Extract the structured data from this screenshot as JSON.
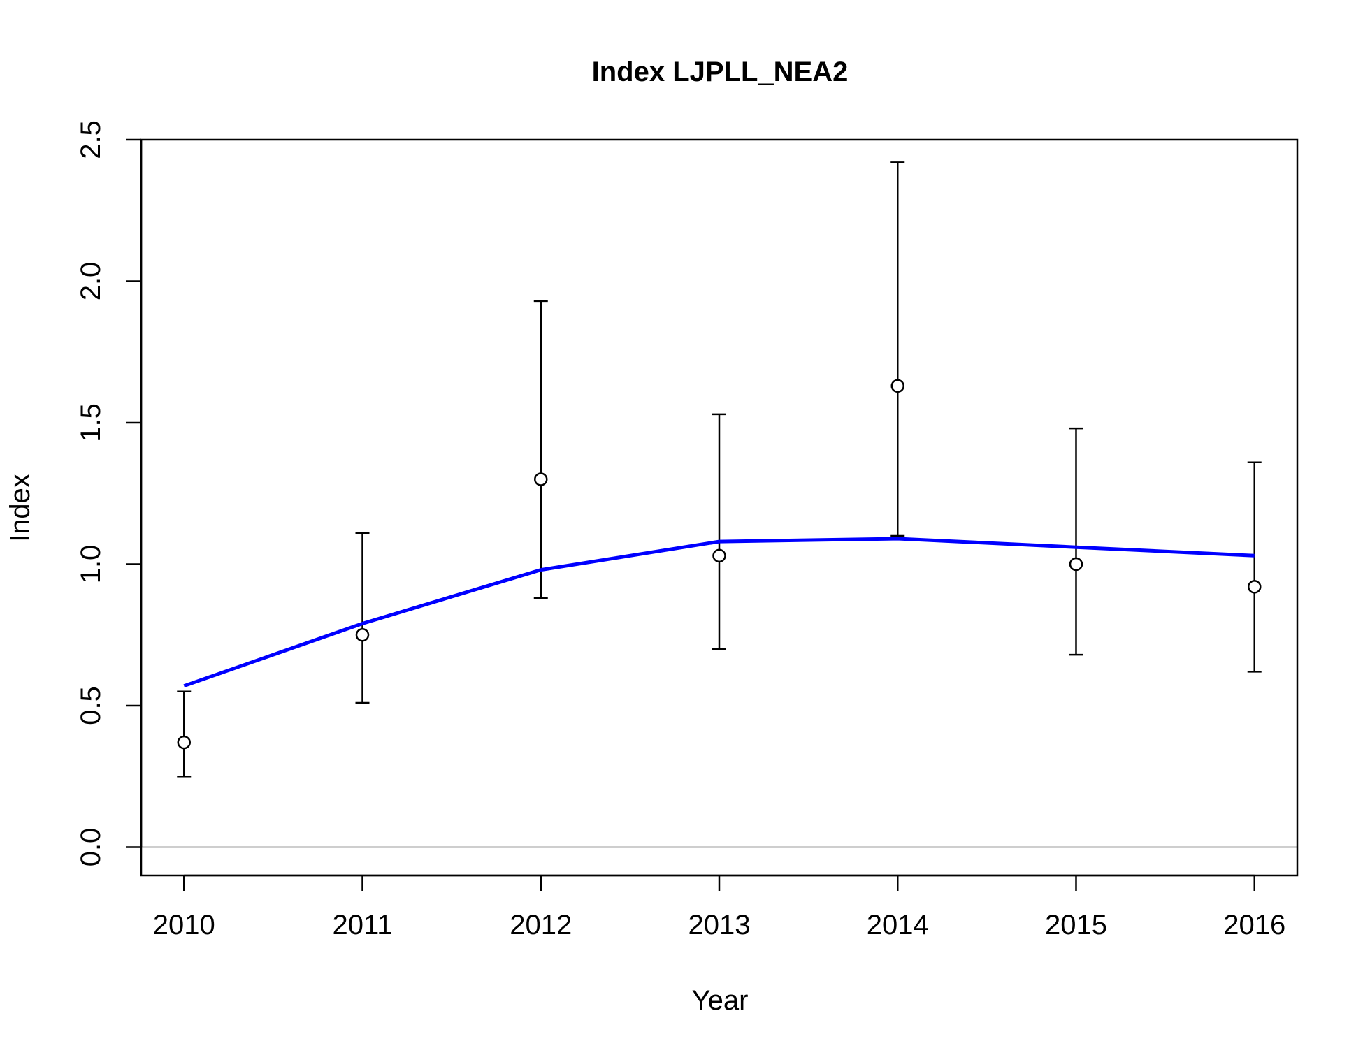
{
  "chart_data": {
    "type": "scatter",
    "title": "Index LJPLL_NEA2",
    "xlabel": "Year",
    "ylabel": "Index",
    "xlim": [
      2009.76,
      2016.24
    ],
    "ylim": [
      -0.1,
      2.5
    ],
    "x_ticks": [
      "2010",
      "2011",
      "2012",
      "2013",
      "2014",
      "2015",
      "2016"
    ],
    "y_ticks": [
      "0.0",
      "0.5",
      "1.0",
      "1.5",
      "2.0",
      "2.5"
    ],
    "series": [
      {
        "kind": "points-with-error-bars",
        "x": [
          2010,
          2011,
          2012,
          2013,
          2014,
          2015,
          2016
        ],
        "y": [
          0.37,
          0.75,
          1.3,
          1.03,
          1.63,
          1.0,
          0.92
        ],
        "lower": [
          0.25,
          0.51,
          0.88,
          0.7,
          1.1,
          0.68,
          0.62
        ],
        "upper": [
          0.55,
          1.11,
          1.93,
          1.53,
          2.42,
          1.48,
          1.36
        ]
      },
      {
        "kind": "line",
        "color": "#0000ff",
        "x": [
          2010,
          2011,
          2012,
          2013,
          2014,
          2015,
          2016
        ],
        "y": [
          0.57,
          0.79,
          0.98,
          1.08,
          1.09,
          1.06,
          1.03
        ]
      }
    ],
    "reference_line": {
      "y": 0,
      "color": "#bebebe"
    },
    "grid": false,
    "legend": "none"
  }
}
